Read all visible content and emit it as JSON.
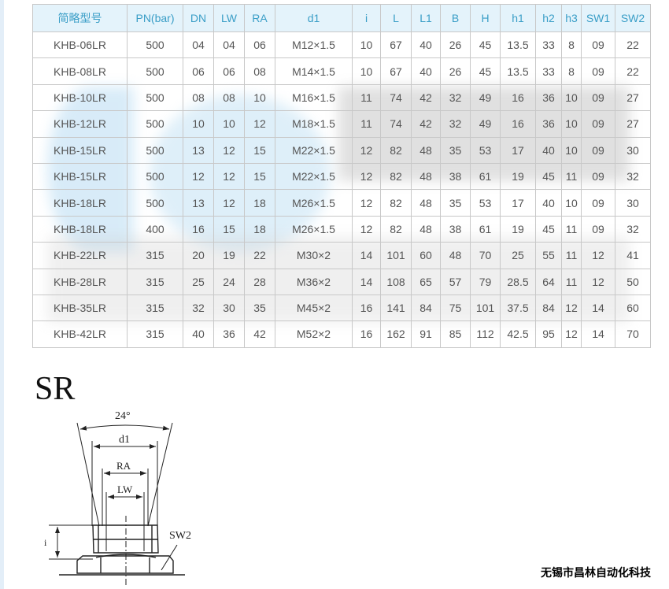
{
  "table": {
    "headers": [
      "简略型号",
      "PN(bar)",
      "DN",
      "LW",
      "RA",
      "d1",
      "i",
      "L",
      "L1",
      "B",
      "H",
      "h1",
      "h2",
      "h3",
      "SW1",
      "SW2"
    ],
    "rows": [
      [
        "KHB-06LR",
        "500",
        "04",
        "04",
        "06",
        "M12×1.5",
        "10",
        "67",
        "40",
        "26",
        "45",
        "13.5",
        "33",
        "8",
        "09",
        "22"
      ],
      [
        "KHB-08LR",
        "500",
        "06",
        "06",
        "08",
        "M14×1.5",
        "10",
        "67",
        "40",
        "26",
        "45",
        "13.5",
        "33",
        "8",
        "09",
        "22"
      ],
      [
        "KHB-10LR",
        "500",
        "08",
        "08",
        "10",
        "M16×1.5",
        "11",
        "74",
        "42",
        "32",
        "49",
        "16",
        "36",
        "10",
        "09",
        "27"
      ],
      [
        "KHB-12LR",
        "500",
        "10",
        "10",
        "12",
        "M18×1.5",
        "11",
        "74",
        "42",
        "32",
        "49",
        "16",
        "36",
        "10",
        "09",
        "27"
      ],
      [
        "KHB-15LR",
        "500",
        "13",
        "12",
        "15",
        "M22×1.5",
        "12",
        "82",
        "48",
        "35",
        "53",
        "17",
        "40",
        "10",
        "09",
        "30"
      ],
      [
        "KHB-15LR",
        "500",
        "12",
        "12",
        "15",
        "M22×1.5",
        "12",
        "82",
        "48",
        "38",
        "61",
        "19",
        "45",
        "11",
        "09",
        "32"
      ],
      [
        "KHB-18LR",
        "500",
        "13",
        "12",
        "18",
        "M26×1.5",
        "12",
        "82",
        "48",
        "35",
        "53",
        "17",
        "40",
        "10",
        "09",
        "30"
      ],
      [
        "KHB-18LR",
        "400",
        "16",
        "15",
        "18",
        "M26×1.5",
        "12",
        "82",
        "48",
        "38",
        "61",
        "19",
        "45",
        "11",
        "09",
        "32"
      ],
      [
        "KHB-22LR",
        "315",
        "20",
        "19",
        "22",
        "M30×2",
        "14",
        "101",
        "60",
        "48",
        "70",
        "25",
        "55",
        "11",
        "12",
        "41"
      ],
      [
        "KHB-28LR",
        "315",
        "25",
        "24",
        "28",
        "M36×2",
        "14",
        "108",
        "65",
        "57",
        "79",
        "28.5",
        "64",
        "11",
        "12",
        "50"
      ],
      [
        "KHB-35LR",
        "315",
        "32",
        "30",
        "35",
        "M45×2",
        "16",
        "141",
        "84",
        "75",
        "101",
        "37.5",
        "84",
        "12",
        "14",
        "60"
      ],
      [
        "KHB-42LR",
        "315",
        "40",
        "36",
        "42",
        "M52×2",
        "16",
        "162",
        "91",
        "85",
        "112",
        "42.5",
        "95",
        "12",
        "14",
        "70"
      ]
    ],
    "header_color": "#3a9ec7",
    "header_bg": "#e4f3fb"
  },
  "diagram": {
    "title": "SR",
    "angle_label": "24°",
    "d1_label": "d1",
    "ra_label": "RA",
    "lw_label": "LW",
    "i_label": "i",
    "sw2_label": "SW2"
  },
  "footer": {
    "company": "无锡市昌林自动化科技"
  }
}
